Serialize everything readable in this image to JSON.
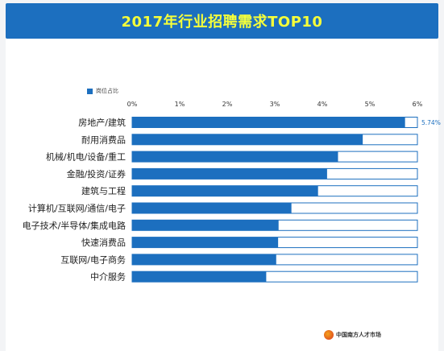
{
  "title": "2017年行业招聘需求TOP10",
  "legend_label": "岗位占比",
  "logo_text": "中国南方人才市场",
  "colors": {
    "title_bar": "#1c6fbf",
    "title_text": "#f6ff3a",
    "bar_fill": "#1c6fbf",
    "track_border": "#1c6fbf",
    "value_on_bar": "#ffffff",
    "value_off_bar": "#1c6fbf"
  },
  "chart_data": {
    "type": "bar",
    "orientation": "horizontal",
    "title": "2017年行业招聘需求TOP10",
    "xlim": [
      0,
      6
    ],
    "x_ticks": [
      "0%",
      "1%",
      "2%",
      "3%",
      "4%",
      "5%",
      "6%"
    ],
    "legend": "top-left",
    "grid": false,
    "categories": [
      "房地产/建筑",
      "耐用消费品",
      "机械/机电/设备/重工",
      "金融/投资/证券",
      "建筑与工程",
      "计算机/互联网/通信/电子",
      "电子技术/半导体/集成电路",
      "快速消费品",
      "互联网/电子商务",
      "中介服务"
    ],
    "series": [
      {
        "name": "岗位占比",
        "values": [
          5.74,
          4.85,
          4.33,
          4.1,
          3.91,
          3.35,
          3.08,
          3.07,
          3.03,
          2.82
        ],
        "labels": [
          "5.74%",
          "4.85%",
          "4.33%",
          "4.10%",
          "3.91%",
          "3.35%",
          "3.08%",
          "3.07%",
          "3.03%",
          "2.82%"
        ]
      }
    ]
  }
}
